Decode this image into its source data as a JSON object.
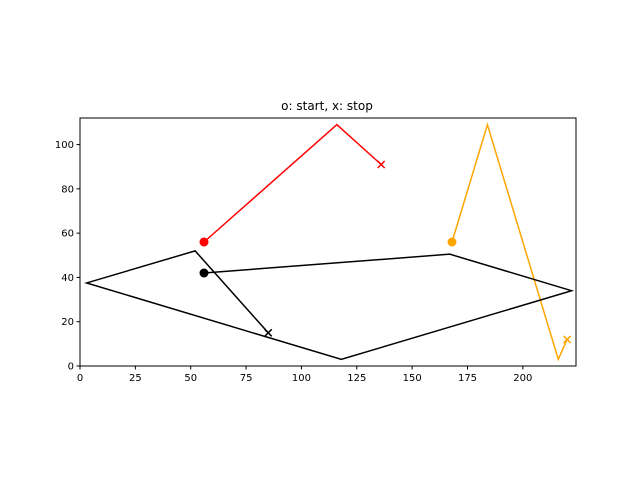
{
  "chart_data": {
    "type": "line",
    "title": "o: start, x: stop",
    "xlabel": "",
    "ylabel": "",
    "xlim": [
      0,
      224
    ],
    "ylim": [
      0,
      112
    ],
    "x_ticks": [
      0,
      25,
      50,
      75,
      100,
      125,
      150,
      175,
      200
    ],
    "y_ticks": [
      0,
      20,
      40,
      60,
      80,
      100
    ],
    "grid": false,
    "series": [
      {
        "color": "#ff0000",
        "points": [
          [
            56,
            56
          ],
          [
            116,
            109
          ],
          [
            136,
            91
          ]
        ]
      },
      {
        "color": "#ffa500",
        "points": [
          [
            168,
            56
          ],
          [
            184,
            109
          ],
          [
            216,
            3
          ],
          [
            220,
            12
          ]
        ]
      },
      {
        "color": "#000000",
        "points": [
          [
            56,
            42
          ],
          [
            167,
            50.5
          ],
          [
            222,
            34
          ],
          [
            118,
            3
          ],
          [
            3,
            37.5
          ],
          [
            52,
            52
          ],
          [
            85,
            15
          ]
        ]
      }
    ]
  }
}
